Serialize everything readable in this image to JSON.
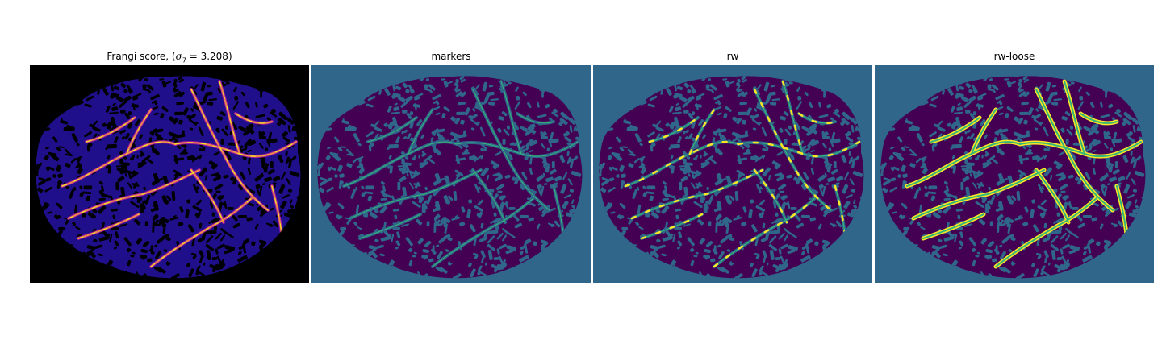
{
  "figure": {
    "panels": [
      {
        "title_prefix": "Frangi score, (",
        "title_sigma": "σ",
        "title_sub": "7",
        "title_suffix": " = 3.208)",
        "colormap": "plasma"
      },
      {
        "title": "markers",
        "colormap": "viridis"
      },
      {
        "title": "rw",
        "colormap": "viridis"
      },
      {
        "title": "rw-loose",
        "colormap": "viridis"
      }
    ]
  },
  "colors": {
    "frangi_background": "#000000",
    "frangi_tissue": "#1f0f8a",
    "frangi_vessel_mid": "#9c179e",
    "frangi_vessel_high": "#fca636",
    "frangi_vessel_peak": "#f0f921",
    "seg_background": "#2f6689",
    "seg_tissue": "#440154",
    "seg_marker": "#35b779",
    "seg_vessel": "#fde725"
  }
}
